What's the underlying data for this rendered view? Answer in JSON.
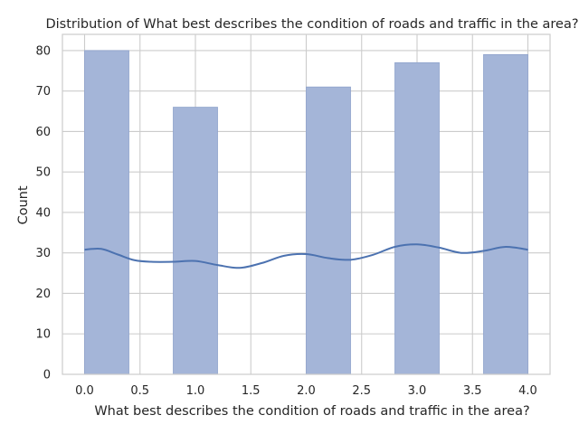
{
  "chart_data": {
    "type": "bar",
    "title": "Distribution of What best describes the condition of roads and traffic in the area?",
    "xlabel": "What best describes the condition of roads and traffic in the area?",
    "ylabel": "Count",
    "xlim": [
      -0.2,
      4.2
    ],
    "ylim": [
      0,
      84
    ],
    "xticks": [
      "0.0",
      "0.5",
      "1.0",
      "1.5",
      "2.0",
      "2.5",
      "3.0",
      "3.5",
      "4.0"
    ],
    "yticks": [
      "0",
      "10",
      "20",
      "30",
      "40",
      "50",
      "60",
      "70",
      "80"
    ],
    "bin_width": 0.4,
    "bins": [
      {
        "left": 0.0,
        "count": 80
      },
      {
        "left": 0.8,
        "count": 66
      },
      {
        "left": 2.0,
        "count": 71
      },
      {
        "left": 2.8,
        "count": 77
      },
      {
        "left": 3.6,
        "count": 79
      }
    ],
    "kde": {
      "x": [
        0.0,
        0.15,
        0.3,
        0.45,
        0.6,
        0.8,
        1.0,
        1.2,
        1.4,
        1.6,
        1.8,
        2.0,
        2.2,
        2.4,
        2.6,
        2.8,
        3.0,
        3.2,
        3.4,
        3.6,
        3.8,
        4.0
      ],
      "y": [
        30.8,
        31.0,
        29.6,
        28.2,
        27.8,
        27.8,
        28.0,
        27.0,
        26.3,
        27.5,
        29.3,
        29.7,
        28.7,
        28.3,
        29.5,
        31.5,
        32.1,
        31.3,
        30.0,
        30.5,
        31.5,
        30.8
      ]
    },
    "grid": true,
    "colors": {
      "bar": "#a4b5d8",
      "bar_edge": "#8fa3cc",
      "kde": "#4c72b0",
      "grid": "#cccccc",
      "spine": "#cccccc"
    }
  }
}
